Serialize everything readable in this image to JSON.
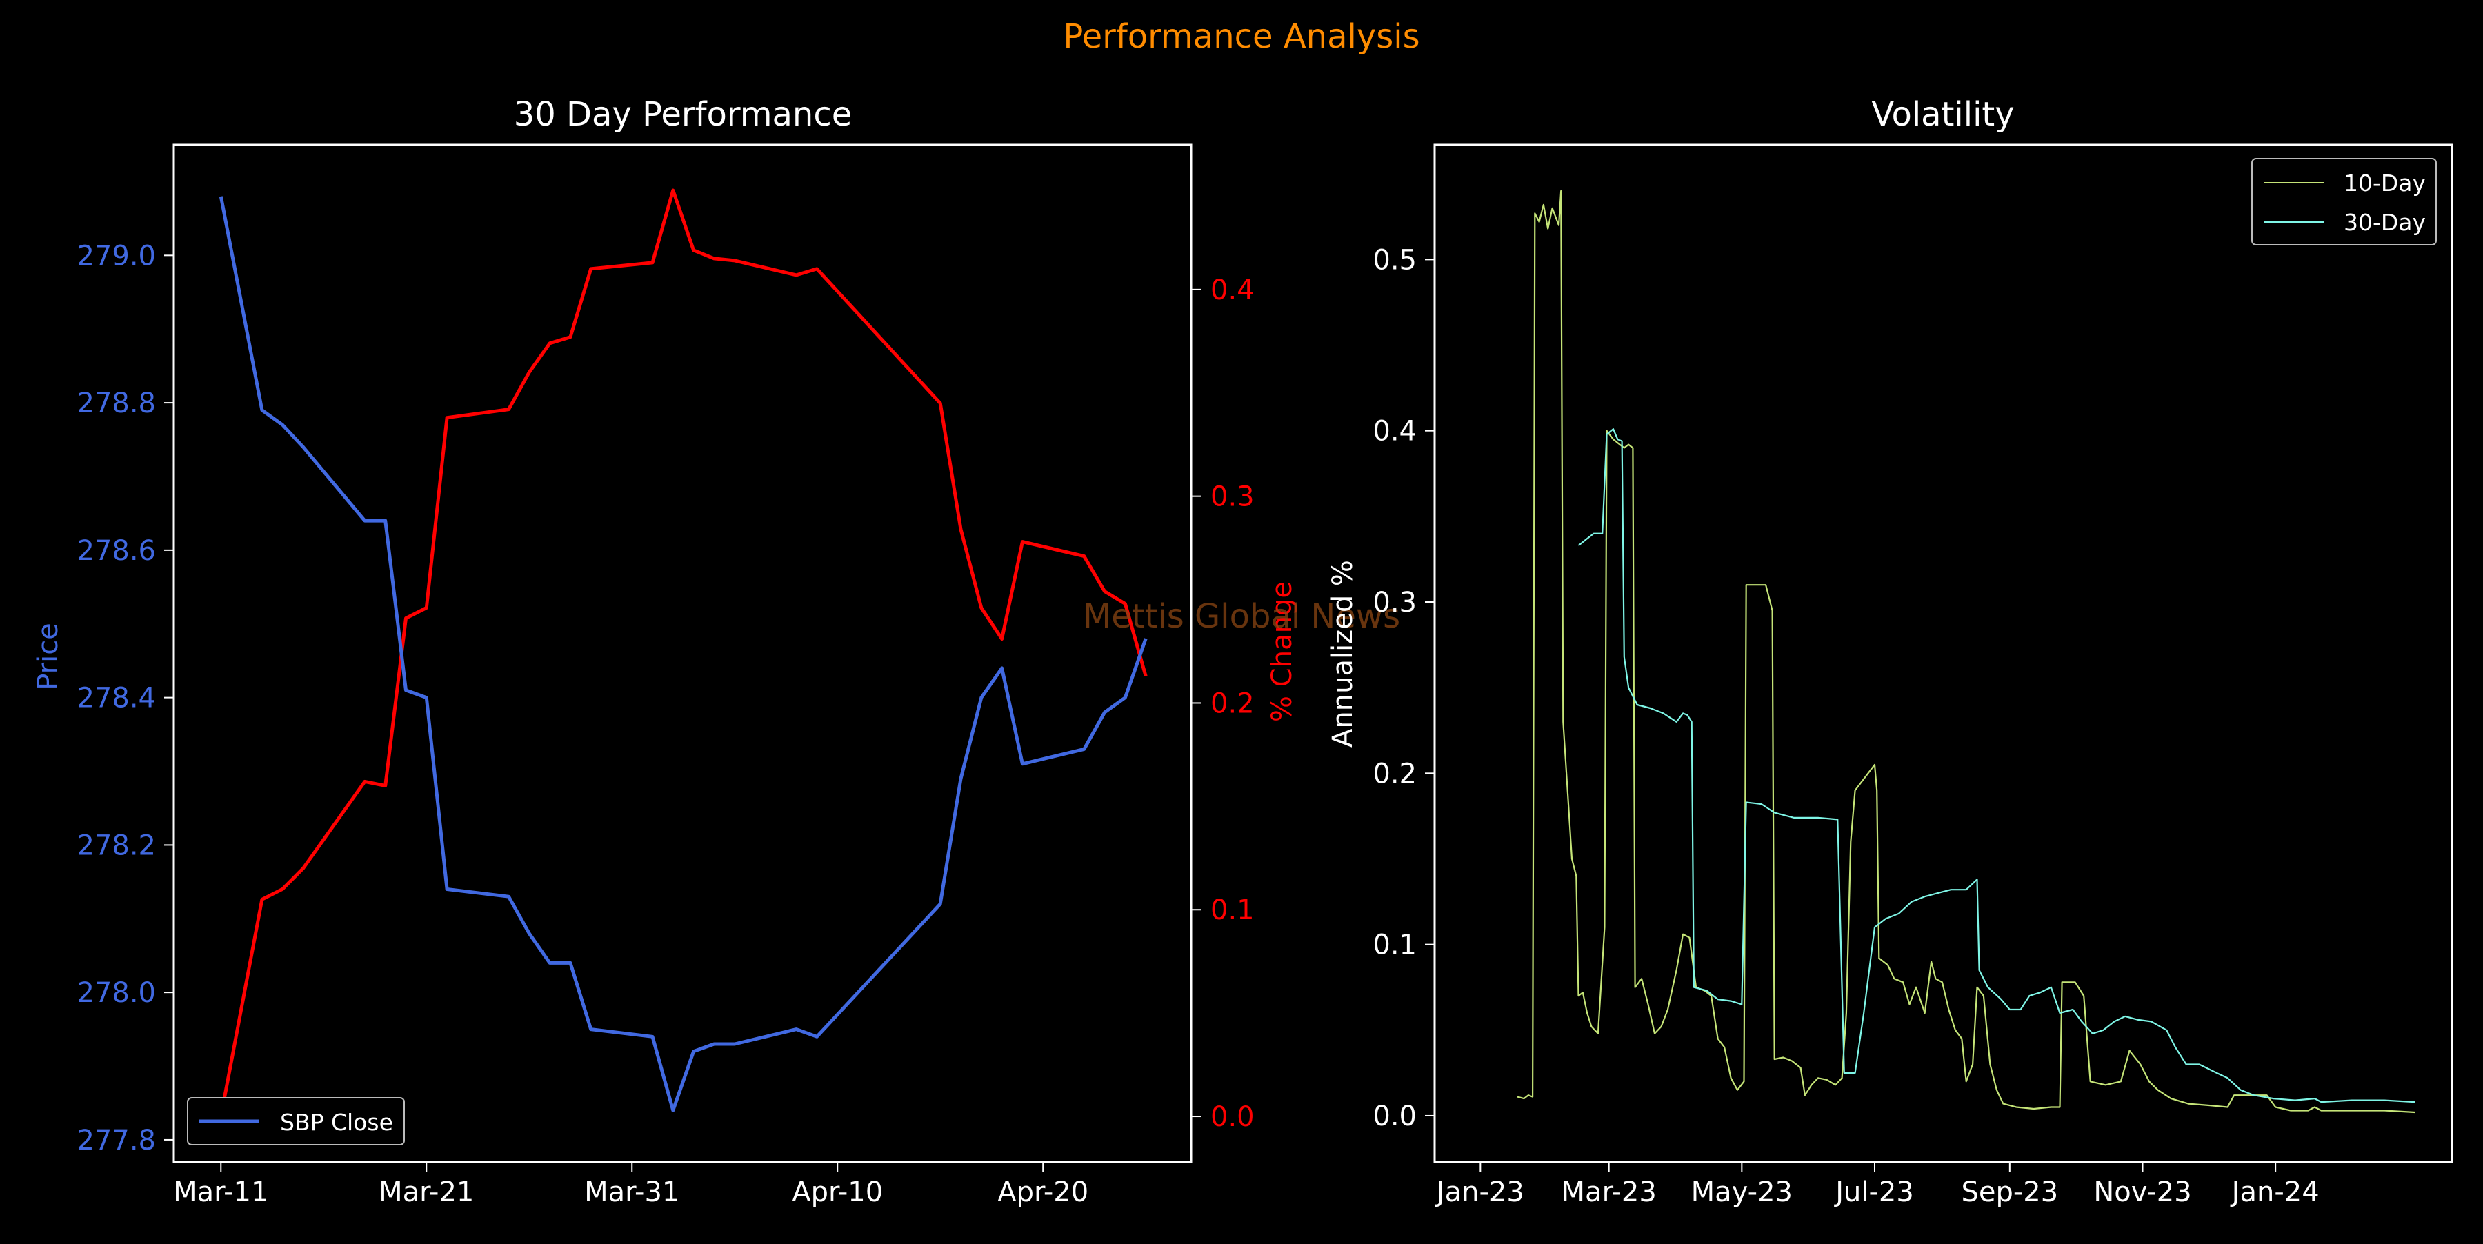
{
  "suptitle": "Performance Analysis",
  "watermark": "Mettis Global News",
  "colors": {
    "background": "#000000",
    "foreground": "#ffffff",
    "suptitle": "#ff8c00",
    "price": "#4169e1",
    "pct": "#ff0000",
    "vol10": "#c5e478",
    "vol30": "#7ff5e6",
    "watermark": "#8b4513"
  },
  "chart_data": [
    {
      "type": "line",
      "title": "30 Day Performance",
      "xlabel": "",
      "ylabel": "Price",
      "y2label": "% Change",
      "x_ticks": [
        "Mar-11",
        "Mar-21",
        "Mar-31",
        "Apr-10",
        "Apr-20"
      ],
      "y_ticks": [
        "277.8",
        "278.0",
        "278.2",
        "278.4",
        "278.6",
        "278.8",
        "279.0"
      ],
      "y2_ticks": [
        "0.0",
        "0.1",
        "0.2",
        "0.3",
        "0.4"
      ],
      "xlim": [
        "2024-03-08T17:00",
        "2024-04-27T05:00"
      ],
      "ylim": [
        277.77,
        279.15
      ],
      "y2lim": [
        -0.022,
        0.47
      ],
      "legend": {
        "entries": [
          "SBP Close"
        ],
        "placement": "lower-left"
      },
      "grid": false,
      "dates": [
        "2024-03-11",
        "2024-03-13",
        "2024-03-14",
        "2024-03-15",
        "2024-03-18",
        "2024-03-19",
        "2024-03-20",
        "2024-03-21",
        "2024-03-22",
        "2024-03-25",
        "2024-03-26",
        "2024-03-27",
        "2024-03-28",
        "2024-03-29",
        "2024-04-01",
        "2024-04-02",
        "2024-04-03",
        "2024-04-04",
        "2024-04-05",
        "2024-04-08",
        "2024-04-09",
        "2024-04-15",
        "2024-04-16",
        "2024-04-17",
        "2024-04-18",
        "2024-04-19",
        "2024-04-22",
        "2024-04-23",
        "2024-04-24",
        "2024-04-25"
      ],
      "series": [
        {
          "name": "SBP Close",
          "axis": "left",
          "values": [
            279.08,
            278.79,
            278.77,
            278.74,
            278.64,
            278.64,
            278.41,
            278.4,
            278.14,
            278.13,
            278.08,
            278.04,
            278.04,
            277.95,
            277.94,
            277.84,
            277.92,
            277.93,
            277.93,
            277.95,
            277.94,
            278.12,
            278.29,
            278.4,
            278.44,
            278.31,
            278.33,
            278.38,
            278.4,
            278.48
          ]
        },
        {
          "name": "% Change",
          "axis": "right",
          "values": [
            0.0,
            0.105,
            0.11,
            0.12,
            0.162,
            0.16,
            0.241,
            0.246,
            0.338,
            0.342,
            0.36,
            0.374,
            0.377,
            0.41,
            0.413,
            0.448,
            0.419,
            0.415,
            0.414,
            0.407,
            0.41,
            0.345,
            0.284,
            0.246,
            0.231,
            0.278,
            0.271,
            0.254,
            0.248,
            0.213
          ]
        }
      ]
    },
    {
      "type": "line",
      "title": "Volatility",
      "xlabel": "",
      "ylabel": "Annualized %",
      "x_ticks": [
        "Jan-23",
        "Mar-23",
        "May-23",
        "Jul-23",
        "Sep-23",
        "Nov-23",
        "Jan-24"
      ],
      "y_ticks": [
        "0.0",
        "0.1",
        "0.2",
        "0.3",
        "0.4",
        "0.5"
      ],
      "xlim": [
        "2022-12-11",
        "2024-03-22"
      ],
      "ylim": [
        -0.027,
        0.567
      ],
      "legend": {
        "entries": [
          "10-Day",
          "30-Day"
        ],
        "placement": "top-right"
      },
      "grid": false,
      "series": [
        {
          "name": "10-Day",
          "points": [
            [
              "2023-01-18",
              0.011
            ],
            [
              "2023-01-21",
              0.01
            ],
            [
              "2023-01-23",
              0.012
            ],
            [
              "2023-01-25",
              0.011
            ],
            [
              "2023-01-26",
              0.527
            ],
            [
              "2023-01-28",
              0.522
            ],
            [
              "2023-01-30",
              0.532
            ],
            [
              "2023-02-01",
              0.518
            ],
            [
              "2023-02-03",
              0.53
            ],
            [
              "2023-02-06",
              0.52
            ],
            [
              "2023-02-07",
              0.54
            ],
            [
              "2023-02-08",
              0.23
            ],
            [
              "2023-02-10",
              0.19
            ],
            [
              "2023-02-12",
              0.15
            ],
            [
              "2023-02-14",
              0.14
            ],
            [
              "2023-02-15",
              0.07
            ],
            [
              "2023-02-17",
              0.072
            ],
            [
              "2023-02-19",
              0.06
            ],
            [
              "2023-02-21",
              0.052
            ],
            [
              "2023-02-24",
              0.048
            ],
            [
              "2023-02-27",
              0.11
            ],
            [
              "2023-02-28",
              0.4
            ],
            [
              "2023-03-03",
              0.395
            ],
            [
              "2023-03-06",
              0.392
            ],
            [
              "2023-03-08",
              0.39
            ],
            [
              "2023-03-10",
              0.392
            ],
            [
              "2023-03-12",
              0.39
            ],
            [
              "2023-03-13",
              0.075
            ],
            [
              "2023-03-16",
              0.08
            ],
            [
              "2023-03-19",
              0.065
            ],
            [
              "2023-03-22",
              0.048
            ],
            [
              "2023-03-25",
              0.052
            ],
            [
              "2023-03-28",
              0.062
            ],
            [
              "2023-04-01",
              0.085
            ],
            [
              "2023-04-04",
              0.106
            ],
            [
              "2023-04-07",
              0.104
            ],
            [
              "2023-04-10",
              0.075
            ],
            [
              "2023-04-14",
              0.073
            ],
            [
              "2023-04-17",
              0.07
            ],
            [
              "2023-04-20",
              0.045
            ],
            [
              "2023-04-23",
              0.04
            ],
            [
              "2023-04-26",
              0.022
            ],
            [
              "2023-04-29",
              0.015
            ],
            [
              "2023-05-02",
              0.02
            ],
            [
              "2023-05-03",
              0.31
            ],
            [
              "2023-05-08",
              0.31
            ],
            [
              "2023-05-12",
              0.31
            ],
            [
              "2023-05-15",
              0.295
            ],
            [
              "2023-05-16",
              0.033
            ],
            [
              "2023-05-20",
              0.034
            ],
            [
              "2023-05-24",
              0.032
            ],
            [
              "2023-05-28",
              0.028
            ],
            [
              "2023-05-30",
              0.012
            ],
            [
              "2023-06-02",
              0.018
            ],
            [
              "2023-06-05",
              0.022
            ],
            [
              "2023-06-09",
              0.021
            ],
            [
              "2023-06-13",
              0.018
            ],
            [
              "2023-06-16",
              0.022
            ],
            [
              "2023-06-18",
              0.06
            ],
            [
              "2023-06-20",
              0.16
            ],
            [
              "2023-06-22",
              0.19
            ],
            [
              "2023-06-25",
              0.195
            ],
            [
              "2023-06-28",
              0.2
            ],
            [
              "2023-07-01",
              0.205
            ],
            [
              "2023-07-02",
              0.19
            ],
            [
              "2023-07-03",
              0.092
            ],
            [
              "2023-07-07",
              0.088
            ],
            [
              "2023-07-10",
              0.08
            ],
            [
              "2023-07-14",
              0.078
            ],
            [
              "2023-07-17",
              0.065
            ],
            [
              "2023-07-20",
              0.075
            ],
            [
              "2023-07-24",
              0.06
            ],
            [
              "2023-07-27",
              0.09
            ],
            [
              "2023-07-29",
              0.08
            ],
            [
              "2023-08-01",
              0.078
            ],
            [
              "2023-08-04",
              0.062
            ],
            [
              "2023-08-07",
              0.05
            ],
            [
              "2023-08-10",
              0.045
            ],
            [
              "2023-08-12",
              0.02
            ],
            [
              "2023-08-15",
              0.03
            ],
            [
              "2023-08-17",
              0.075
            ],
            [
              "2023-08-20",
              0.07
            ],
            [
              "2023-08-23",
              0.03
            ],
            [
              "2023-08-26",
              0.015
            ],
            [
              "2023-08-29",
              0.007
            ],
            [
              "2023-09-04",
              0.005
            ],
            [
              "2023-09-12",
              0.004
            ],
            [
              "2023-09-20",
              0.005
            ],
            [
              "2023-09-24",
              0.005
            ],
            [
              "2023-09-25",
              0.078
            ],
            [
              "2023-10-01",
              0.078
            ],
            [
              "2023-10-05",
              0.07
            ],
            [
              "2023-10-08",
              0.02
            ],
            [
              "2023-10-15",
              0.018
            ],
            [
              "2023-10-22",
              0.02
            ],
            [
              "2023-10-26",
              0.038
            ],
            [
              "2023-10-31",
              0.03
            ],
            [
              "2023-11-04",
              0.02
            ],
            [
              "2023-11-08",
              0.015
            ],
            [
              "2023-11-14",
              0.01
            ],
            [
              "2023-11-22",
              0.007
            ],
            [
              "2023-12-02",
              0.006
            ],
            [
              "2023-12-10",
              0.005
            ],
            [
              "2023-12-13",
              0.012
            ],
            [
              "2023-12-20",
              0.012
            ],
            [
              "2023-12-28",
              0.012
            ],
            [
              "2024-01-01",
              0.005
            ],
            [
              "2024-01-08",
              0.003
            ],
            [
              "2024-01-16",
              0.003
            ],
            [
              "2024-01-19",
              0.005
            ],
            [
              "2024-01-22",
              0.003
            ],
            [
              "2024-02-07",
              0.003
            ],
            [
              "2024-02-20",
              0.003
            ],
            [
              "2024-03-05",
              0.002
            ]
          ]
        },
        {
          "name": "30-Day",
          "points": [
            [
              "2023-02-15",
              0.333
            ],
            [
              "2023-02-17",
              0.335
            ],
            [
              "2023-02-19",
              0.337
            ],
            [
              "2023-02-22",
              0.34
            ],
            [
              "2023-02-26",
              0.34
            ],
            [
              "2023-02-28",
              0.398
            ],
            [
              "2023-03-03",
              0.401
            ],
            [
              "2023-03-05",
              0.395
            ],
            [
              "2023-03-07",
              0.394
            ],
            [
              "2023-03-08",
              0.268
            ],
            [
              "2023-03-10",
              0.25
            ],
            [
              "2023-03-14",
              0.24
            ],
            [
              "2023-03-20",
              0.238
            ],
            [
              "2023-03-26",
              0.235
            ],
            [
              "2023-04-01",
              0.23
            ],
            [
              "2023-04-04",
              0.235
            ],
            [
              "2023-04-06",
              0.234
            ],
            [
              "2023-04-08",
              0.23
            ],
            [
              "2023-04-09",
              0.075
            ],
            [
              "2023-04-15",
              0.073
            ],
            [
              "2023-04-20",
              0.068
            ],
            [
              "2023-04-26",
              0.067
            ],
            [
              "2023-05-01",
              0.065
            ],
            [
              "2023-05-03",
              0.183
            ],
            [
              "2023-05-10",
              0.182
            ],
            [
              "2023-05-16",
              0.177
            ],
            [
              "2023-05-25",
              0.174
            ],
            [
              "2023-06-05",
              0.174
            ],
            [
              "2023-06-14",
              0.173
            ],
            [
              "2023-06-17",
              0.025
            ],
            [
              "2023-06-22",
              0.025
            ],
            [
              "2023-06-26",
              0.06
            ],
            [
              "2023-07-01",
              0.11
            ],
            [
              "2023-07-06",
              0.115
            ],
            [
              "2023-07-12",
              0.118
            ],
            [
              "2023-07-18",
              0.125
            ],
            [
              "2023-07-24",
              0.128
            ],
            [
              "2023-07-30",
              0.13
            ],
            [
              "2023-08-05",
              0.132
            ],
            [
              "2023-08-12",
              0.132
            ],
            [
              "2023-08-17",
              0.138
            ],
            [
              "2023-08-18",
              0.085
            ],
            [
              "2023-08-22",
              0.075
            ],
            [
              "2023-08-28",
              0.068
            ],
            [
              "2023-09-01",
              0.062
            ],
            [
              "2023-09-06",
              0.062
            ],
            [
              "2023-09-10",
              0.07
            ],
            [
              "2023-09-15",
              0.072
            ],
            [
              "2023-09-20",
              0.075
            ],
            [
              "2023-09-24",
              0.06
            ],
            [
              "2023-09-30",
              0.062
            ],
            [
              "2023-10-04",
              0.055
            ],
            [
              "2023-10-09",
              0.048
            ],
            [
              "2023-10-14",
              0.05
            ],
            [
              "2023-10-19",
              0.055
            ],
            [
              "2023-10-24",
              0.058
            ],
            [
              "2023-10-30",
              0.056
            ],
            [
              "2023-11-05",
              0.055
            ],
            [
              "2023-11-12",
              0.05
            ],
            [
              "2023-11-16",
              0.04
            ],
            [
              "2023-11-21",
              0.03
            ],
            [
              "2023-11-27",
              0.03
            ],
            [
              "2023-12-05",
              0.025
            ],
            [
              "2023-12-10",
              0.022
            ],
            [
              "2023-12-16",
              0.015
            ],
            [
              "2023-12-22",
              0.012
            ],
            [
              "2023-12-31",
              0.01
            ],
            [
              "2024-01-10",
              0.009
            ],
            [
              "2024-01-19",
              0.01
            ],
            [
              "2024-01-22",
              0.008
            ],
            [
              "2024-02-05",
              0.009
            ],
            [
              "2024-02-20",
              0.009
            ],
            [
              "2024-03-05",
              0.008
            ]
          ]
        }
      ]
    }
  ]
}
